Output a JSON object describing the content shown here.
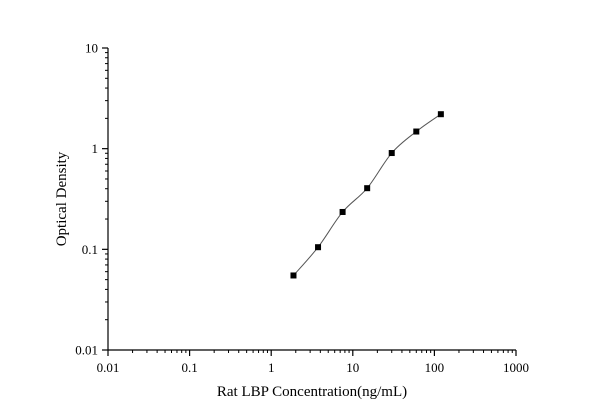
{
  "chart_data": {
    "type": "scatter",
    "title": "",
    "xlabel": "Rat LBP Concentration(ng/mL)",
    "ylabel": "Optical Density",
    "x_scale": "log",
    "y_scale": "log",
    "xlim": [
      0.01,
      1000
    ],
    "ylim": [
      0.01,
      10
    ],
    "x_ticks": [
      0.01,
      0.1,
      1,
      10,
      100,
      1000
    ],
    "x_tick_labels": [
      "0.01",
      "0.1",
      "1",
      "10",
      "100",
      "1000"
    ],
    "y_ticks": [
      0.01,
      0.1,
      1,
      10
    ],
    "y_tick_labels": [
      "0.01",
      "0.1",
      "1",
      "10"
    ],
    "grid": false,
    "legend": "none",
    "series": [
      {
        "x": [
          1.875,
          3.75,
          7.5,
          15,
          30,
          60,
          120
        ],
        "y": [
          0.055,
          0.105,
          0.235,
          0.405,
          0.905,
          1.48,
          2.2
        ],
        "marker": "square",
        "fit_line": true,
        "color": "#000000"
      }
    ]
  }
}
